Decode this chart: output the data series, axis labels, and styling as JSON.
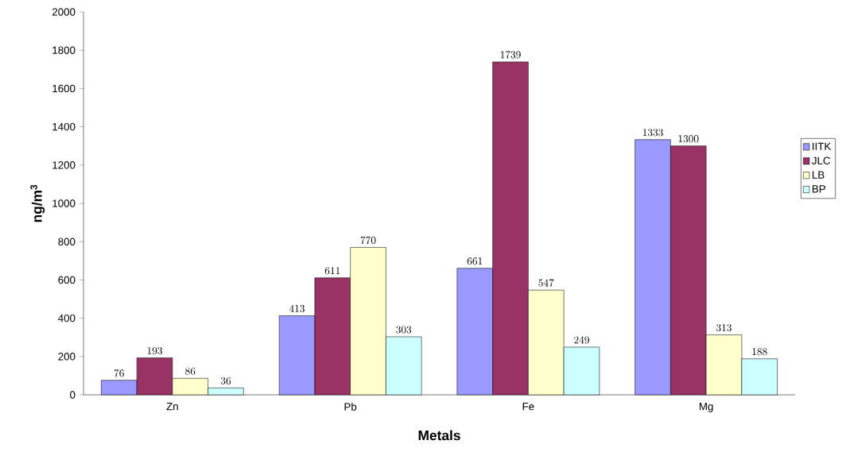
{
  "chart_data": {
    "type": "bar",
    "xlabel": "Metals",
    "ylabel": "ng/m$^{3}$",
    "categories": [
      "Zn",
      "Pb",
      "Fe",
      "Mg"
    ],
    "series": [
      {
        "name": "IITK",
        "color": "#9999ff",
        "values": [
          76,
          413,
          661,
          1333
        ]
      },
      {
        "name": "JLC",
        "color": "#993366",
        "values": [
          193,
          611,
          1739,
          1300
        ]
      },
      {
        "name": "LB",
        "color": "#ffffcc",
        "values": [
          86,
          770,
          547,
          313
        ]
      },
      {
        "name": "BP",
        "color": "#ccffff",
        "values": [
          36,
          303,
          249,
          188
        ]
      }
    ],
    "ylim": [
      0,
      2000
    ],
    "yticks": [
      0,
      200,
      400,
      600,
      800,
      1000,
      1200,
      1400,
      1600,
      1800,
      2000
    ],
    "data_labels": true,
    "legend": "right",
    "grid": false
  }
}
